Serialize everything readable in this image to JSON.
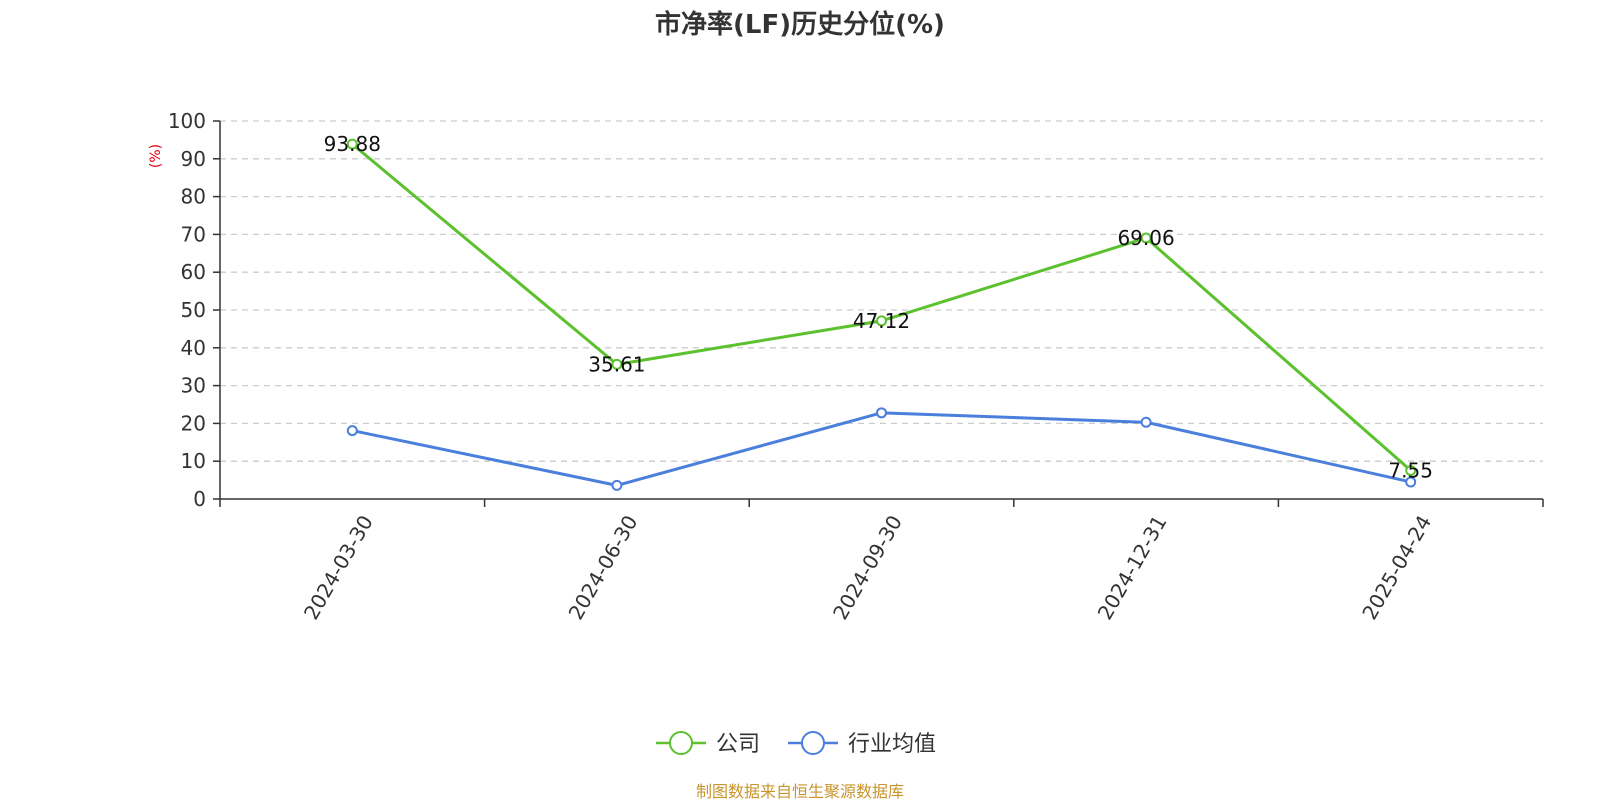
{
  "chart_data": {
    "type": "line",
    "title": "市净率(LF)历史分位(%)",
    "ylabel": "(%)",
    "ylabel_color": "#e60012",
    "categories": [
      "2024-03-30",
      "2024-06-30",
      "2024-09-30",
      "2024-12-31",
      "2025-04-24"
    ],
    "ylim": [
      0,
      100
    ],
    "yticks": [
      0,
      10,
      20,
      30,
      40,
      50,
      60,
      70,
      80,
      90,
      100
    ],
    "grid": true,
    "legend_position": "bottom-center",
    "series": [
      {
        "name": "公司",
        "color": "#5cc12e",
        "values": [
          93.88,
          35.61,
          47.12,
          69.06,
          7.55
        ],
        "show_labels": true
      },
      {
        "name": "行业均值",
        "color": "#4b7fdc",
        "values": [
          18.1,
          3.6,
          22.8,
          20.3,
          4.5
        ],
        "show_labels": false
      }
    ],
    "source": "制图数据来自恒生聚源数据库",
    "source_color": "#c8952d"
  }
}
